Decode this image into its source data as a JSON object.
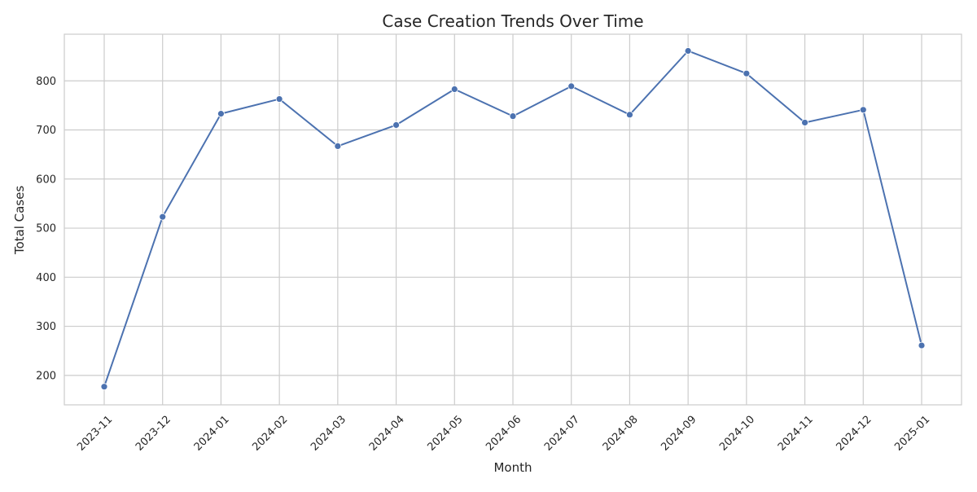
{
  "chart_data": {
    "type": "line",
    "title": "Case Creation Trends Over Time",
    "xlabel": "Month",
    "ylabel": "Total Cases",
    "x": [
      "2023-11",
      "2023-12",
      "2024-01",
      "2024-02",
      "2024-03",
      "2024-04",
      "2024-05",
      "2024-06",
      "2024-07",
      "2024-08",
      "2024-09",
      "2024-10",
      "2024-11",
      "2024-12",
      "2025-01"
    ],
    "series": [
      {
        "values": [
          177,
          523,
          733,
          763,
          667,
          710,
          783,
          728,
          789,
          731,
          861,
          815,
          715,
          741,
          261
        ],
        "color": "#4c72b0",
        "marker": "circle"
      }
    ],
    "yticks": [
      200,
      300,
      400,
      500,
      600,
      700,
      800
    ],
    "ylim": [
      140,
      895
    ],
    "grid": true,
    "x_tick_rotation": 45,
    "colors": {
      "grid": "#cccccc",
      "axis": "#cccccc",
      "text": "#262626",
      "background": "#ffffff"
    }
  }
}
